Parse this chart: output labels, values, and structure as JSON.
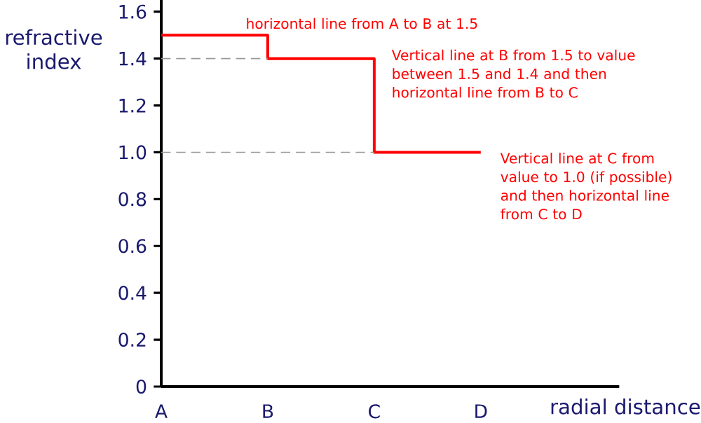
{
  "chart_data": {
    "type": "step",
    "ylabel": "refractive index",
    "xlabel": "radial distance",
    "categories": [
      "A",
      "B",
      "C",
      "D"
    ],
    "series": [
      {
        "color": "#ff0000",
        "values": [
          1.5,
          1.4,
          1.0,
          1.0
        ]
      }
    ],
    "ylim": [
      0,
      1.65
    ],
    "yticks": [
      0,
      0.2,
      0.4,
      0.6,
      0.8,
      {
        "value": 1.0,
        "label": "1.0"
      },
      1.2,
      1.4,
      1.6
    ],
    "ref_lines": [
      {
        "axis": "y",
        "value": 1.4,
        "color": "#999999",
        "line_style": "dashed"
      },
      {
        "axis": "y",
        "value": 1.0,
        "color": "#999999",
        "line_style": "dashed"
      }
    ],
    "annotations": [
      "horizontal line from A to B at 1.5",
      "Vertical line at B from 1.5 to value between 1.5 and 1.4 and then horizontal line from B to C",
      "Vertical line at C from value to 1.0 (if possible) and then horizontal line from C to D"
    ]
  }
}
